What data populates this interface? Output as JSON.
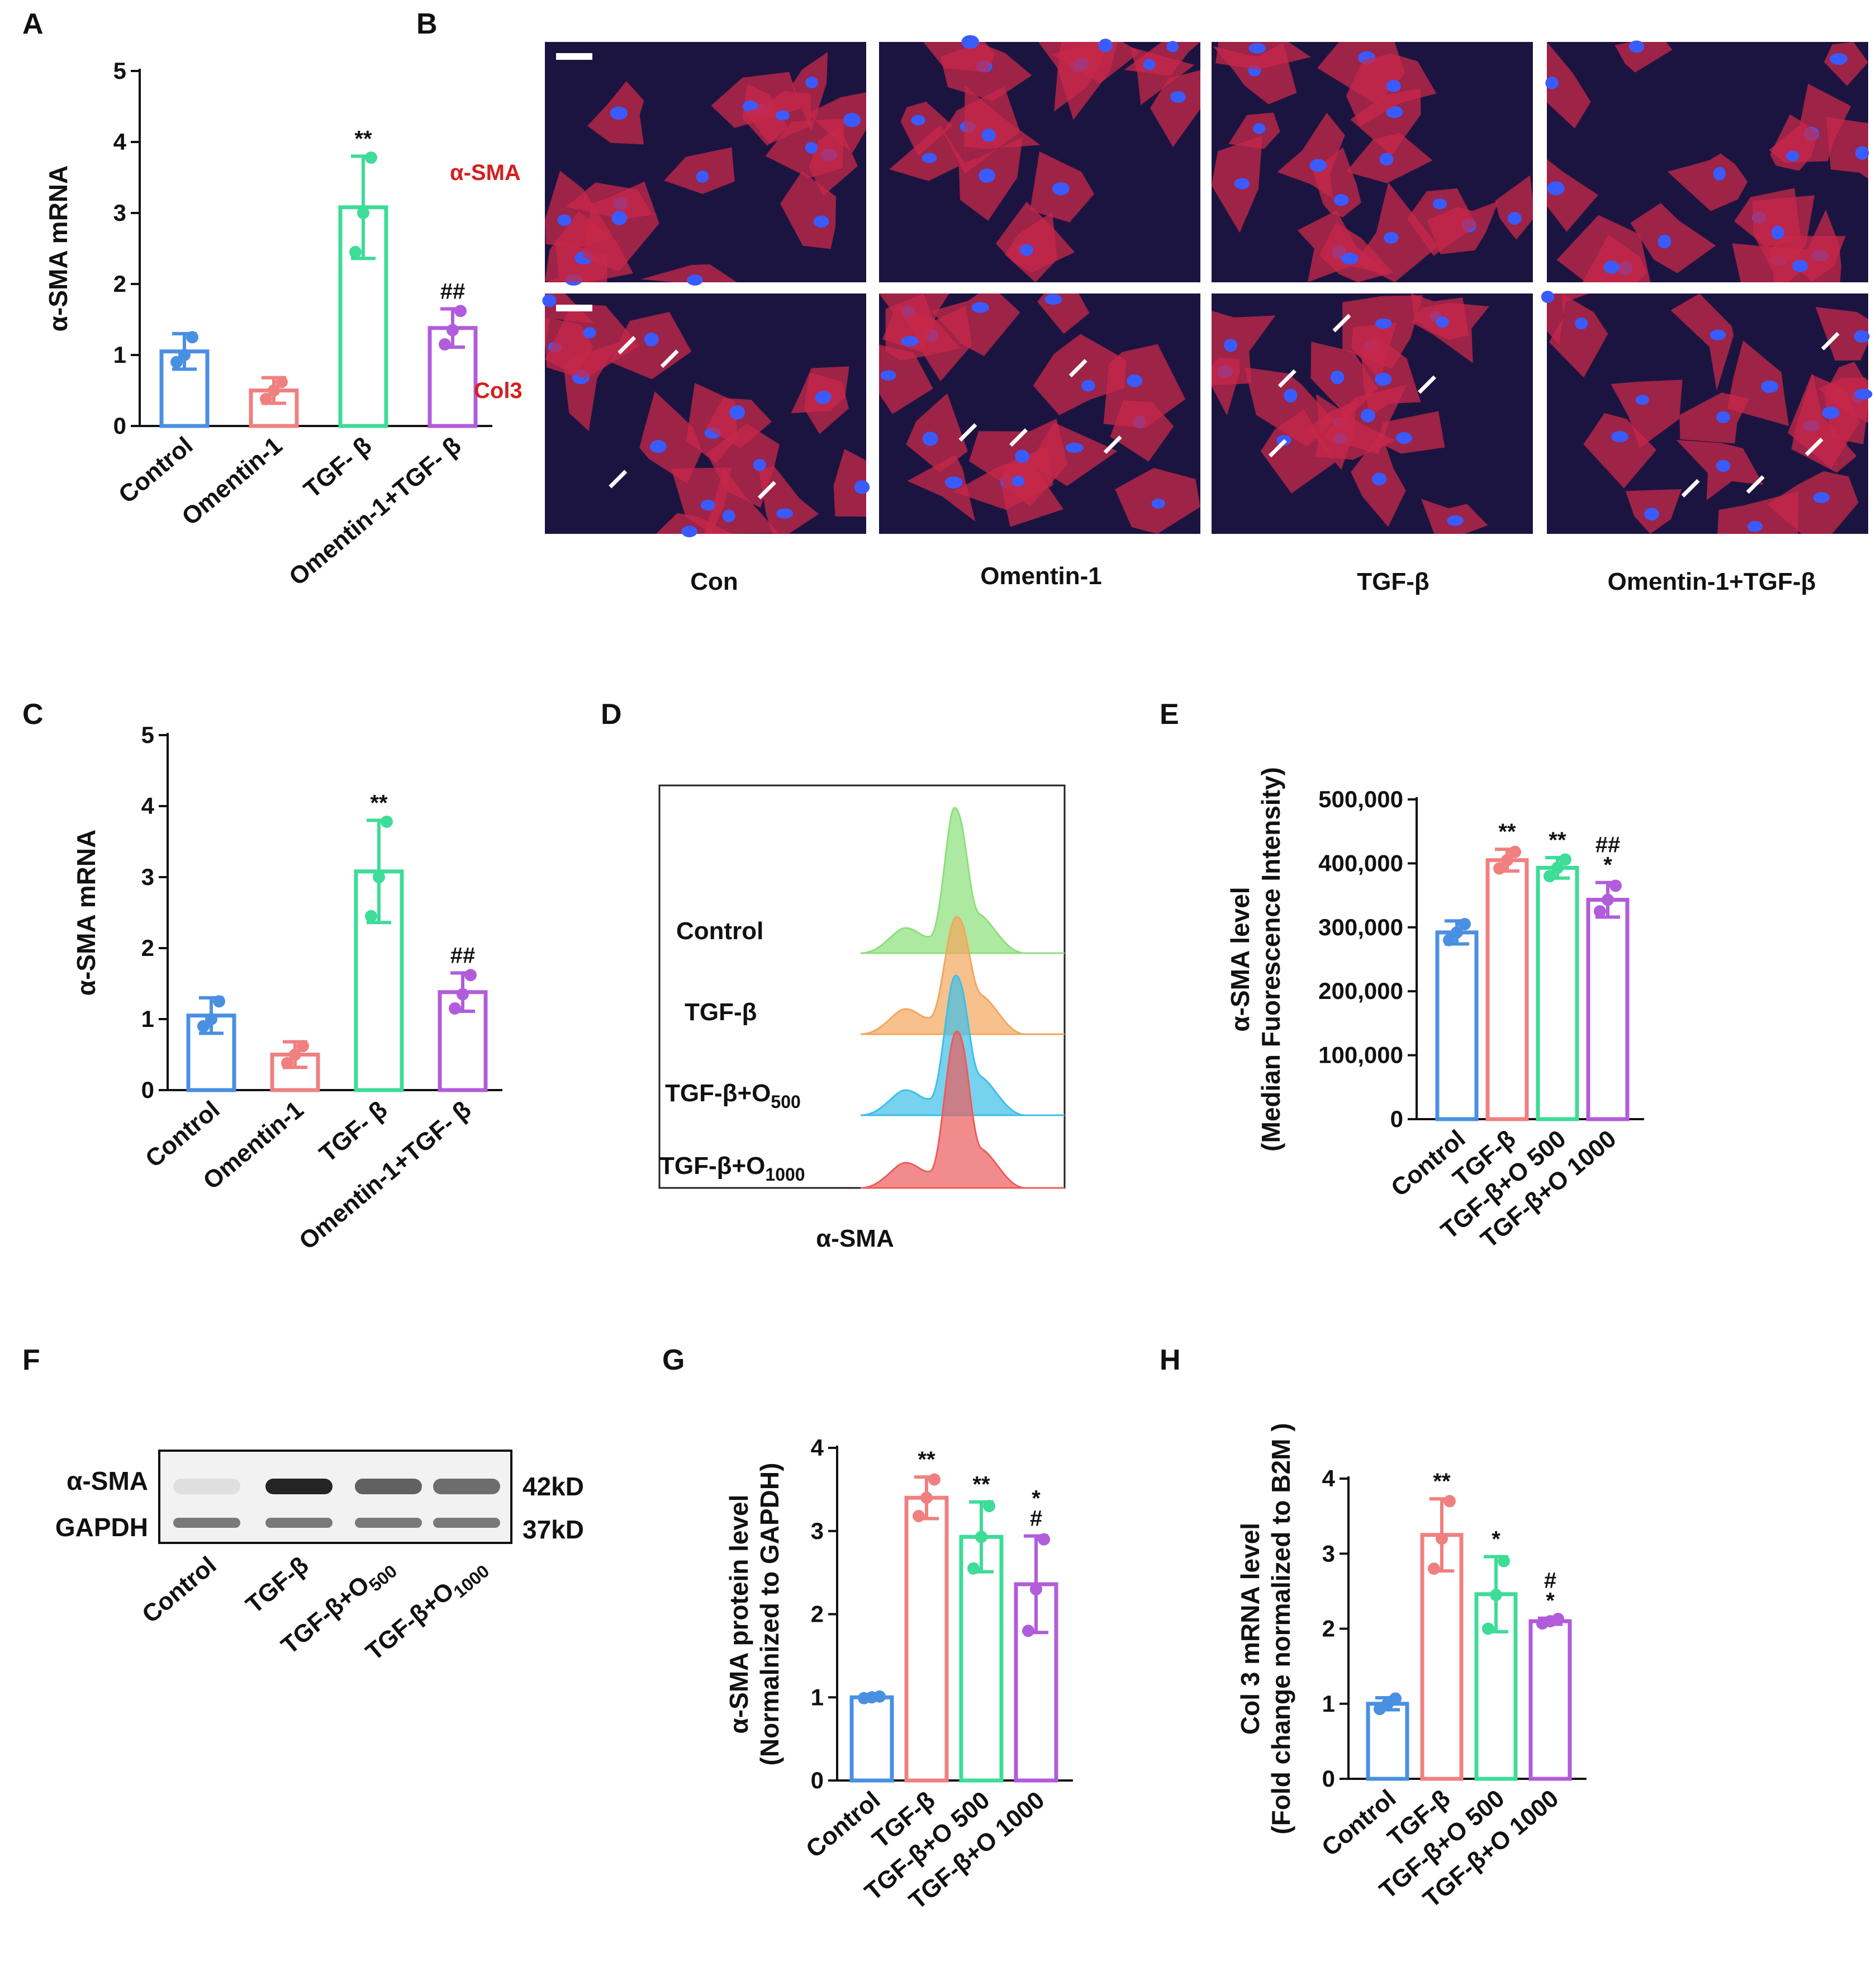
{
  "panel_letters": {
    "a": "A",
    "b": "B",
    "c": "C",
    "d": "D",
    "e": "E",
    "f": "F",
    "g": "G",
    "h": "H"
  },
  "colors": {
    "control": "#4a90e2",
    "omentin": "#f08080",
    "tgf": "#3ddc97",
    "combo": "#b15cdb",
    "cell_bg": "#1c1440",
    "cell_red": "#c8284a",
    "nucleus": "#3a5bff"
  },
  "panel_B": {
    "row_labels": [
      "α-SMA",
      "Col3"
    ],
    "column_labels": [
      "Con",
      "Omentin-1",
      "TGF-β",
      "Omentin-1+TGF-β"
    ]
  },
  "panel_D": {
    "labels": [
      "Control",
      "TGF-β",
      "TGF-β+O",
      "TGF-β+O"
    ],
    "label_subscripts": [
      "",
      "",
      "500",
      "1000"
    ],
    "xlabel": "α-SMA",
    "colors": [
      "#8ce07a",
      "#f2a75c",
      "#3dbfe8",
      "#ec5b5b"
    ]
  },
  "panel_F": {
    "bands": [
      {
        "label": "α-SMA",
        "size": "42kD"
      },
      {
        "label": "GAPDH",
        "size": "37kD"
      }
    ],
    "lanes": [
      "Control",
      "TGF-β",
      "TGF-β+O",
      "TGF-β+O"
    ],
    "lane_subscripts": [
      "",
      "",
      "500",
      "1000"
    ]
  },
  "chart_data": [
    {
      "id": "A",
      "type": "bar",
      "ylabel": "α-SMA mRNA",
      "ylim": [
        0,
        5
      ],
      "yticks": [
        0,
        1,
        2,
        3,
        4,
        5
      ],
      "categories": [
        "Control",
        "Omentin-1",
        "TGF- β",
        "Omentin-1+TGF- β"
      ],
      "values": [
        1.05,
        0.5,
        3.08,
        1.38
      ],
      "errors": [
        0.25,
        0.18,
        0.72,
        0.27
      ],
      "points": [
        [
          0.9,
          1.0,
          1.25
        ],
        [
          0.38,
          0.5,
          0.62
        ],
        [
          2.45,
          3.0,
          3.78
        ],
        [
          1.15,
          1.35,
          1.62
        ]
      ],
      "annotations": [
        "",
        "",
        "**",
        "##"
      ],
      "colors": [
        "#4a90e2",
        "#f08080",
        "#3ddc97",
        "#b15cdb"
      ]
    },
    {
      "id": "C",
      "type": "bar",
      "ylabel": "α-SMA mRNA",
      "ylim": [
        0,
        5
      ],
      "yticks": [
        0,
        1,
        2,
        3,
        4,
        5
      ],
      "categories": [
        "Control",
        "Omentin-1",
        "TGF- β",
        "Omentin-1+TGF- β"
      ],
      "values": [
        1.05,
        0.5,
        3.08,
        1.38
      ],
      "errors": [
        0.25,
        0.18,
        0.72,
        0.27
      ],
      "points": [
        [
          0.9,
          1.0,
          1.25
        ],
        [
          0.38,
          0.5,
          0.62
        ],
        [
          2.45,
          3.0,
          3.78
        ],
        [
          1.15,
          1.35,
          1.62
        ]
      ],
      "annotations": [
        "",
        "",
        "**",
        "##"
      ],
      "colors": [
        "#4a90e2",
        "#f08080",
        "#3ddc97",
        "#b15cdb"
      ]
    },
    {
      "id": "E",
      "type": "bar",
      "ylabel": "α-SMA level",
      "ylabel2": "(Median Fuorescence Intensity)",
      "ylim": [
        0,
        500000
      ],
      "yticks": [
        0,
        100000,
        200000,
        300000,
        400000,
        500000
      ],
      "ytick_labels": [
        "0",
        "100,000",
        "200,000",
        "300,000",
        "400,000",
        "500,000"
      ],
      "categories": [
        "Control",
        "TGF-β",
        "TGF-β+O 500",
        "TGF-β+O 1000"
      ],
      "values": [
        292000,
        405000,
        393000,
        343000
      ],
      "errors": [
        18000,
        17000,
        16000,
        27000
      ],
      "points": [
        [
          280000,
          292000,
          305000
        ],
        [
          392000,
          405000,
          418000
        ],
        [
          380000,
          393000,
          406000
        ],
        [
          325000,
          343000,
          365000
        ]
      ],
      "annotations": [
        "",
        "**",
        "**",
        "##\n*"
      ],
      "colors": [
        "#4a90e2",
        "#f08080",
        "#3ddc97",
        "#b15cdb"
      ]
    },
    {
      "id": "G",
      "type": "bar",
      "ylabel": "α-SMA protein level",
      "ylabel2": "(Normalnized to GAPDH)",
      "ylim": [
        0,
        4
      ],
      "yticks": [
        0,
        1,
        2,
        3,
        4
      ],
      "categories": [
        "Control",
        "TGF-β",
        "TGF-β+O 500",
        "TGF-β+O 1000"
      ],
      "values": [
        1.0,
        3.4,
        2.93,
        2.36
      ],
      "errors": [
        0.02,
        0.25,
        0.42,
        0.58
      ],
      "points": [
        [
          0.99,
          1.0,
          1.01
        ],
        [
          3.18,
          3.4,
          3.62
        ],
        [
          2.55,
          2.93,
          3.3
        ],
        [
          1.8,
          2.3,
          2.9
        ]
      ],
      "annotations": [
        "",
        "**",
        "**",
        "*\n#"
      ],
      "colors": [
        "#4a90e2",
        "#f08080",
        "#3ddc97",
        "#b15cdb"
      ]
    },
    {
      "id": "H",
      "type": "bar",
      "ylabel": "Col 3 mRNA level",
      "ylabel2": "(Fold change normalized to B2M )",
      "ylim": [
        0,
        4
      ],
      "yticks": [
        0,
        1,
        2,
        3,
        4
      ],
      "categories": [
        "Control",
        "TGF-β",
        "TGF-β+O 500",
        "TGF-β+O 1000"
      ],
      "values": [
        1.0,
        3.25,
        2.46,
        2.1
      ],
      "errors": [
        0.08,
        0.48,
        0.5,
        0.04
      ],
      "points": [
        [
          0.93,
          1.0,
          1.07
        ],
        [
          2.8,
          3.2,
          3.7
        ],
        [
          2.0,
          2.45,
          2.9
        ],
        [
          2.07,
          2.1,
          2.13
        ]
      ],
      "annotations": [
        "",
        "**",
        "*",
        "#\n*"
      ],
      "colors": [
        "#4a90e2",
        "#f08080",
        "#3ddc97",
        "#b15cdb"
      ]
    }
  ]
}
